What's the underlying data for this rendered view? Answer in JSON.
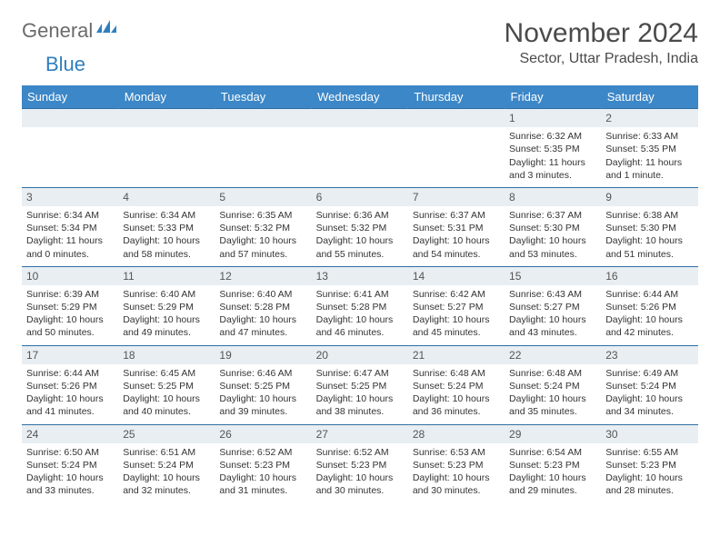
{
  "brand": {
    "part1": "General",
    "part2": "Blue"
  },
  "title": "November 2024",
  "location": "Sector, Uttar Pradesh, India",
  "colors": {
    "header_bg": "#3c87c7",
    "header_text": "#ffffff",
    "daynum_bg": "#e8eef2",
    "border": "#2f6fa3",
    "body_text": "#333333",
    "title_text": "#4a4a4a",
    "logo_gray": "#6b6b6b",
    "logo_blue": "#2f7fbf"
  },
  "day_headers": [
    "Sunday",
    "Monday",
    "Tuesday",
    "Wednesday",
    "Thursday",
    "Friday",
    "Saturday"
  ],
  "weeks": [
    [
      null,
      null,
      null,
      null,
      null,
      {
        "n": "1",
        "sunrise": "6:32 AM",
        "sunset": "5:35 PM",
        "daylight": "11 hours and 3 minutes."
      },
      {
        "n": "2",
        "sunrise": "6:33 AM",
        "sunset": "5:35 PM",
        "daylight": "11 hours and 1 minute."
      }
    ],
    [
      {
        "n": "3",
        "sunrise": "6:34 AM",
        "sunset": "5:34 PM",
        "daylight": "11 hours and 0 minutes."
      },
      {
        "n": "4",
        "sunrise": "6:34 AM",
        "sunset": "5:33 PM",
        "daylight": "10 hours and 58 minutes."
      },
      {
        "n": "5",
        "sunrise": "6:35 AM",
        "sunset": "5:32 PM",
        "daylight": "10 hours and 57 minutes."
      },
      {
        "n": "6",
        "sunrise": "6:36 AM",
        "sunset": "5:32 PM",
        "daylight": "10 hours and 55 minutes."
      },
      {
        "n": "7",
        "sunrise": "6:37 AM",
        "sunset": "5:31 PM",
        "daylight": "10 hours and 54 minutes."
      },
      {
        "n": "8",
        "sunrise": "6:37 AM",
        "sunset": "5:30 PM",
        "daylight": "10 hours and 53 minutes."
      },
      {
        "n": "9",
        "sunrise": "6:38 AM",
        "sunset": "5:30 PM",
        "daylight": "10 hours and 51 minutes."
      }
    ],
    [
      {
        "n": "10",
        "sunrise": "6:39 AM",
        "sunset": "5:29 PM",
        "daylight": "10 hours and 50 minutes."
      },
      {
        "n": "11",
        "sunrise": "6:40 AM",
        "sunset": "5:29 PM",
        "daylight": "10 hours and 49 minutes."
      },
      {
        "n": "12",
        "sunrise": "6:40 AM",
        "sunset": "5:28 PM",
        "daylight": "10 hours and 47 minutes."
      },
      {
        "n": "13",
        "sunrise": "6:41 AM",
        "sunset": "5:28 PM",
        "daylight": "10 hours and 46 minutes."
      },
      {
        "n": "14",
        "sunrise": "6:42 AM",
        "sunset": "5:27 PM",
        "daylight": "10 hours and 45 minutes."
      },
      {
        "n": "15",
        "sunrise": "6:43 AM",
        "sunset": "5:27 PM",
        "daylight": "10 hours and 43 minutes."
      },
      {
        "n": "16",
        "sunrise": "6:44 AM",
        "sunset": "5:26 PM",
        "daylight": "10 hours and 42 minutes."
      }
    ],
    [
      {
        "n": "17",
        "sunrise": "6:44 AM",
        "sunset": "5:26 PM",
        "daylight": "10 hours and 41 minutes."
      },
      {
        "n": "18",
        "sunrise": "6:45 AM",
        "sunset": "5:25 PM",
        "daylight": "10 hours and 40 minutes."
      },
      {
        "n": "19",
        "sunrise": "6:46 AM",
        "sunset": "5:25 PM",
        "daylight": "10 hours and 39 minutes."
      },
      {
        "n": "20",
        "sunrise": "6:47 AM",
        "sunset": "5:25 PM",
        "daylight": "10 hours and 38 minutes."
      },
      {
        "n": "21",
        "sunrise": "6:48 AM",
        "sunset": "5:24 PM",
        "daylight": "10 hours and 36 minutes."
      },
      {
        "n": "22",
        "sunrise": "6:48 AM",
        "sunset": "5:24 PM",
        "daylight": "10 hours and 35 minutes."
      },
      {
        "n": "23",
        "sunrise": "6:49 AM",
        "sunset": "5:24 PM",
        "daylight": "10 hours and 34 minutes."
      }
    ],
    [
      {
        "n": "24",
        "sunrise": "6:50 AM",
        "sunset": "5:24 PM",
        "daylight": "10 hours and 33 minutes."
      },
      {
        "n": "25",
        "sunrise": "6:51 AM",
        "sunset": "5:24 PM",
        "daylight": "10 hours and 32 minutes."
      },
      {
        "n": "26",
        "sunrise": "6:52 AM",
        "sunset": "5:23 PM",
        "daylight": "10 hours and 31 minutes."
      },
      {
        "n": "27",
        "sunrise": "6:52 AM",
        "sunset": "5:23 PM",
        "daylight": "10 hours and 30 minutes."
      },
      {
        "n": "28",
        "sunrise": "6:53 AM",
        "sunset": "5:23 PM",
        "daylight": "10 hours and 30 minutes."
      },
      {
        "n": "29",
        "sunrise": "6:54 AM",
        "sunset": "5:23 PM",
        "daylight": "10 hours and 29 minutes."
      },
      {
        "n": "30",
        "sunrise": "6:55 AM",
        "sunset": "5:23 PM",
        "daylight": "10 hours and 28 minutes."
      }
    ]
  ],
  "labels": {
    "sunrise": "Sunrise:",
    "sunset": "Sunset:",
    "daylight": "Daylight:"
  }
}
